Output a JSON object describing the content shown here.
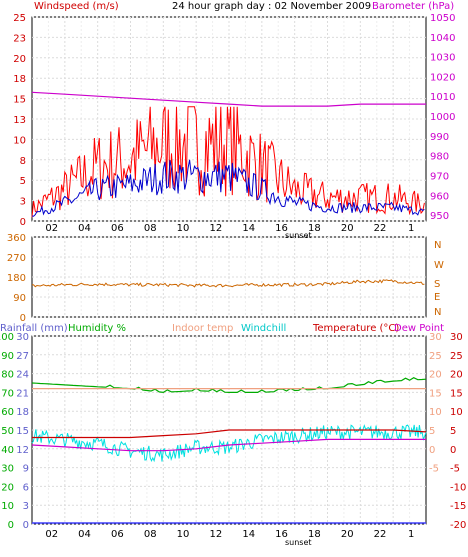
{
  "header": {
    "left_label": "Windspeed (m/s)",
    "title": "24 hour graph day : 02 November 2009",
    "right_label": "Barometer (hPa)"
  },
  "wind_dir_labels": [
    "N",
    "W",
    "S",
    "E",
    "N"
  ],
  "bottom_labels": {
    "rainfall": "Rainfall (mm)",
    "humidity": "Humidity %",
    "indoor": "Indoor temp",
    "windchill": "Windchill",
    "temperature": "Temperature (°C)",
    "dewpoint": "Dew Point"
  },
  "x_ticks": [
    "02",
    "04",
    "06",
    "08",
    "10",
    "12",
    "14",
    "16",
    "18",
    "20",
    "22",
    "1"
  ],
  "sunset_label": "sunset",
  "colors": {
    "wind": "#e00000",
    "gust": "#ff0000",
    "avg_wind": "#0000cc",
    "barometer": "#cc00cc",
    "wind_dir": "#cc6600",
    "humidity": "#00aa00",
    "indoor": "#f0a080",
    "windchill": "#00e0e0",
    "temperature": "#cc0000",
    "dewpoint": "#cc00cc",
    "rainfall": "#4040ff"
  },
  "chart_data": [
    {
      "type": "line",
      "title": "24 hour graph day : 02 November 2009",
      "ylabel": "Windspeed (m/s)",
      "y2label": "Barometer (hPa)",
      "yticks": [
        0,
        3,
        5,
        8,
        10,
        13,
        15,
        18,
        20,
        23,
        25
      ],
      "ylim": [
        0,
        25
      ],
      "y2ticks": [
        950,
        960,
        970,
        980,
        990,
        1000,
        1010,
        1020,
        1030,
        1040,
        1050
      ],
      "y2lim": [
        947,
        1050
      ],
      "x": [
        0,
        2,
        4,
        6,
        8,
        10,
        12,
        14,
        16,
        18,
        20,
        22,
        24
      ],
      "series": [
        {
          "name": "Windspeed (m/s)",
          "values": [
            1.5,
            4,
            7,
            8,
            10,
            10,
            10,
            7,
            4,
            3,
            3,
            3,
            2
          ]
        },
        {
          "name": "Barometer (hPa)",
          "values": [
            1012,
            1011,
            1010,
            1009,
            1008,
            1007,
            1006,
            1005,
            1005,
            1005,
            1006,
            1006,
            1006
          ]
        }
      ]
    },
    {
      "type": "line",
      "yticks": [
        0,
        90,
        180,
        270,
        360
      ],
      "ylim": [
        0,
        360
      ],
      "x": [
        0,
        2,
        4,
        6,
        8,
        10,
        12,
        14,
        16,
        18,
        20,
        22,
        24
      ],
      "series": [
        {
          "name": "Wind direction",
          "values": [
            140,
            145,
            148,
            145,
            145,
            142,
            142,
            145,
            145,
            148,
            160,
            162,
            150
          ]
        }
      ]
    },
    {
      "type": "line",
      "ylabel": "Temperature (°C)",
      "yticks": [
        -20,
        -15,
        -10,
        -5,
        0,
        5,
        10,
        15,
        20,
        25,
        30
      ],
      "ylim": [
        -20,
        30
      ],
      "left_ticks": [
        0,
        10,
        20,
        30,
        40,
        50,
        60,
        70,
        80,
        90,
        100
      ],
      "rain_ticks": [
        0,
        3,
        6,
        9,
        12,
        15,
        18,
        21,
        24,
        27,
        30
      ],
      "x": [
        0,
        2,
        4,
        6,
        8,
        10,
        12,
        14,
        16,
        18,
        20,
        22,
        24
      ],
      "series": [
        {
          "name": "Humidity %",
          "values": [
            75,
            74,
            73,
            72,
            70,
            71,
            70,
            70,
            71,
            72,
            74,
            76,
            77
          ]
        },
        {
          "name": "Indoor temp",
          "values": [
            16,
            16,
            16,
            16,
            16,
            16,
            16,
            16,
            16,
            16,
            16,
            16,
            16
          ]
        },
        {
          "name": "Windchill",
          "values": [
            3,
            2,
            1,
            -1,
            -2,
            0,
            0,
            2,
            3,
            4,
            4,
            4,
            4
          ]
        },
        {
          "name": "Temperature (°C)",
          "values": [
            3,
            3,
            3,
            3,
            3.5,
            4,
            5,
            5,
            5,
            5,
            5,
            5,
            4.5
          ]
        },
        {
          "name": "Dew Point",
          "values": [
            1,
            0.5,
            0,
            -0.5,
            -0.5,
            0,
            1,
            1.5,
            2,
            2.5,
            2.5,
            2.5,
            2.5
          ]
        },
        {
          "name": "Rainfall (mm)",
          "values": [
            0,
            0,
            0,
            0,
            0,
            0,
            0,
            0,
            0,
            0,
            0,
            0,
            0
          ]
        }
      ]
    }
  ]
}
